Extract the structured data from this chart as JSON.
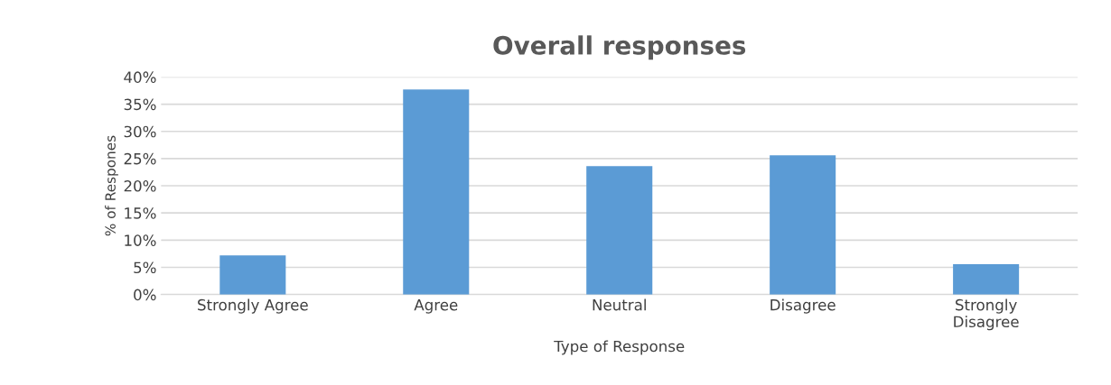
{
  "chart_data": {
    "type": "bar",
    "title": "Overall responses",
    "xlabel": "Type of Response",
    "ylabel": "% of Respones",
    "categories": [
      "Strongly Agree",
      "Agree",
      "Neutral",
      "Disagree",
      "Strongly\nDisagree"
    ],
    "values": [
      7.2,
      37.7,
      23.6,
      25.6,
      5.6
    ],
    "color": "#5b9bd5",
    "ylim": [
      0,
      40
    ],
    "yticks": [
      {
        "value": 0,
        "label": "0%"
      },
      {
        "value": 5,
        "label": "5%"
      },
      {
        "value": 10,
        "label": "10%"
      },
      {
        "value": 15,
        "label": "15%"
      },
      {
        "value": 20,
        "label": "20%"
      },
      {
        "value": 25,
        "label": "25%"
      },
      {
        "value": 30,
        "label": "30%"
      },
      {
        "value": 35,
        "label": "35%"
      },
      {
        "value": 40,
        "label": "40%"
      }
    ],
    "grid": "y"
  }
}
